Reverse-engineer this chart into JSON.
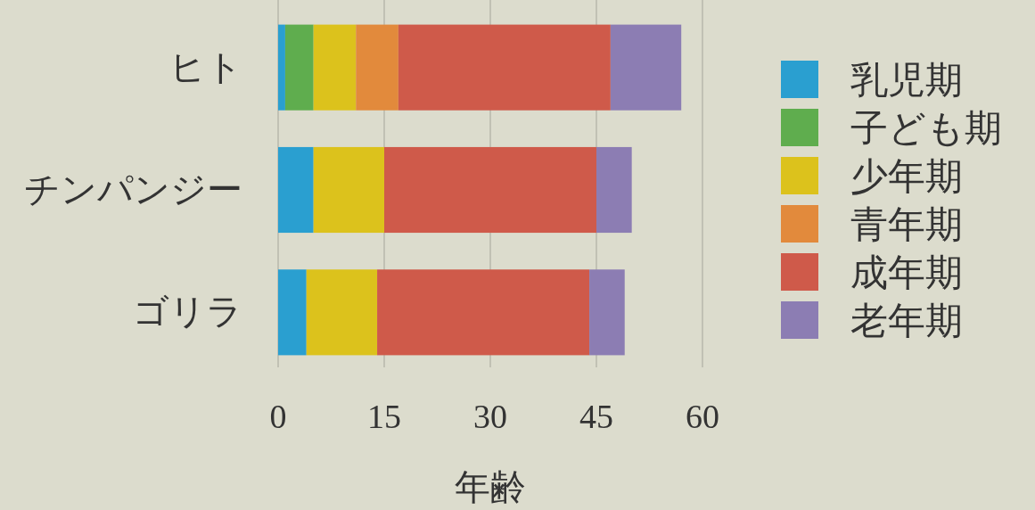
{
  "chart_data": {
    "type": "bar",
    "orientation": "horizontal",
    "stacked": true,
    "xlabel": "年齢",
    "categories": [
      "ヒト",
      "チンパンジー",
      "ゴリラ"
    ],
    "series": [
      {
        "name": "乳児期",
        "color": "#2a9fd0",
        "values": [
          1,
          5,
          4
        ]
      },
      {
        "name": "子ども期",
        "color": "#5fad4e",
        "values": [
          4,
          0,
          0
        ]
      },
      {
        "name": "少年期",
        "color": "#dcc21c",
        "values": [
          6,
          10,
          10
        ]
      },
      {
        "name": "青年期",
        "color": "#e28a3c",
        "values": [
          6,
          0,
          0
        ]
      },
      {
        "name": "成年期",
        "color": "#cf5a4a",
        "values": [
          30,
          30,
          30
        ]
      },
      {
        "name": "老年期",
        "color": "#8c7db3",
        "values": [
          10,
          5,
          5
        ]
      }
    ],
    "xlim": [
      0,
      60
    ],
    "xticks": [
      0,
      15,
      30,
      45,
      60
    ],
    "grid": "x",
    "legend": "right"
  }
}
